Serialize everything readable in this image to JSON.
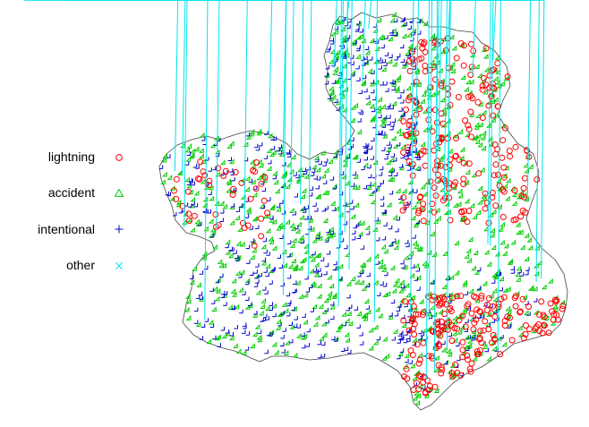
{
  "legend": {
    "items": [
      {
        "label": "lightning",
        "symbol": "circle",
        "color": "#ff0000"
      },
      {
        "label": "accident",
        "symbol": "triangle",
        "color": "#00cd00"
      },
      {
        "label": "intentional",
        "symbol": "plus",
        "color": "#0000cd"
      },
      {
        "label": "other",
        "symbol": "cross",
        "color": "#00e5ee"
      }
    ]
  },
  "map": {
    "boundary_color": "#444444",
    "background_color": "#ffffff"
  },
  "chart_data": {
    "type": "scatter",
    "title": "",
    "xlabel": "",
    "ylabel": "",
    "grid": false,
    "axes": false,
    "legend_position": "left",
    "series": [
      {
        "name": "lightning",
        "marker": "circle",
        "color": "#ff0000",
        "distribution": "dense clusters in the north-east and south-east of the region"
      },
      {
        "name": "accident",
        "marker": "triangle",
        "color": "#00cd00",
        "distribution": "most numerous, spread over the whole region"
      },
      {
        "name": "intentional",
        "marker": "plus",
        "color": "#0000cd",
        "distribution": "concentrated in the west and north"
      },
      {
        "name": "other",
        "marker": "cross",
        "color": "#00e5ee",
        "distribution": "sparse, scattered"
      }
    ]
  }
}
